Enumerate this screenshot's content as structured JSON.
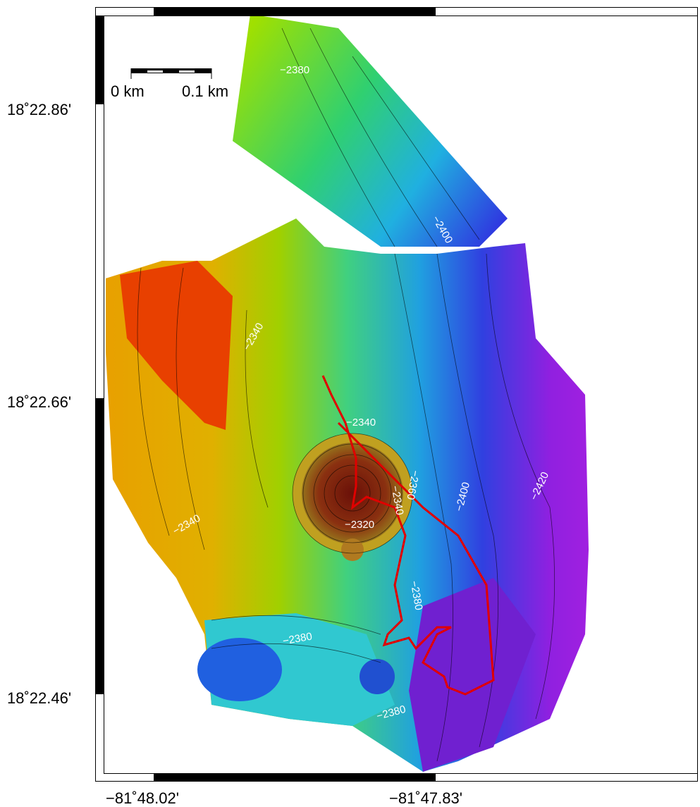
{
  "map": {
    "lat_labels": [
      "18˚22.86'",
      "18˚22.66'",
      "18˚22.46'"
    ],
    "lon_labels": [
      "−81˚48.02'",
      "−81˚47.83'"
    ],
    "scale_bar": {
      "start": "0 km",
      "end": "0.1 km"
    },
    "contour_labels": [
      "−2380",
      "−2400",
      "−2340",
      "−2340",
      "−2320",
      "−2340",
      "−2360",
      "−2400",
      "−2420",
      "−2340",
      "−2380",
      "−2380",
      "−2380"
    ]
  }
}
